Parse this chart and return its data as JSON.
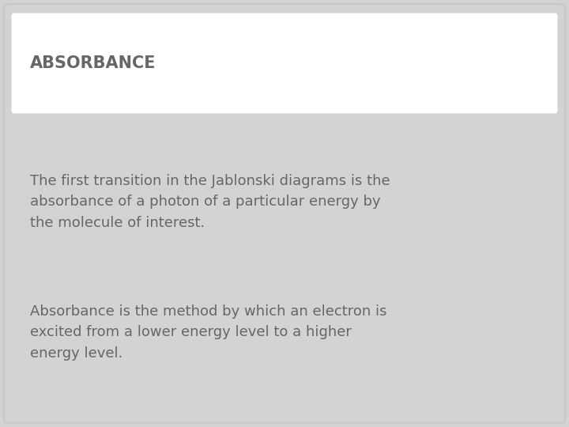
{
  "background_color": "#d3d3d3",
  "title_box_color": "#ffffff",
  "title_text": "ABSORBANCE",
  "title_text_color": "#666666",
  "title_fontsize": 15,
  "title_fontweight": "bold",
  "body_text_color": "#666666",
  "body_fontsize": 13,
  "paragraph1": "The first transition in the Jablonski diagrams is the\nabsorbance of a photon of a particular energy by\nthe molecule of interest.",
  "paragraph2": "Absorbance is the method by which an electron is\nexcited from a lower energy level to a higher\nenergy level.",
  "outer_border_color": "#c8c8c8",
  "inner_border_color": "#d0d0d0"
}
